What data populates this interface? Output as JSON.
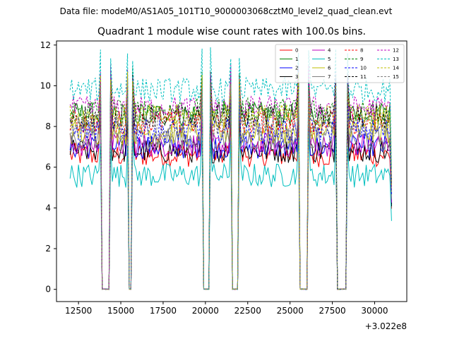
{
  "chart_data": {
    "type": "line",
    "suptitle": "Data file: modeM0/AS1A05_101T10_9000003068cztM0_level2_quad_clean.evt",
    "title": "Quadrant 1 module wise count rates with 100.0s bins.",
    "xlabel": "",
    "ylabel": "",
    "x_offset_label": "+3.022e8",
    "xlim": [
      11200,
      31900
    ],
    "ylim": [
      -0.6,
      12.2
    ],
    "x_ticks": [
      12500,
      15000,
      17500,
      20000,
      22500,
      25000,
      27500,
      30000
    ],
    "y_ticks": [
      0,
      2,
      4,
      6,
      8,
      10,
      12
    ],
    "grid": false,
    "legend_position": "top-right",
    "time_start": 12000,
    "time_step": 100,
    "time_end": 31000,
    "gaps": [
      [
        13850,
        14350
      ],
      [
        15450,
        15650
      ],
      [
        19850,
        20250
      ],
      [
        21550,
        21950
      ],
      [
        25550,
        26050
      ],
      [
        27750,
        28350
      ]
    ],
    "noise_level": 0.6,
    "series": [
      {
        "name": "0",
        "level": 6.6,
        "color": "#ff0000",
        "dashed": false
      },
      {
        "name": "1",
        "level": 8.6,
        "color": "#008000",
        "dashed": false
      },
      {
        "name": "2",
        "level": 7.0,
        "color": "#0000ff",
        "dashed": false
      },
      {
        "name": "3",
        "level": 6.8,
        "color": "#000000",
        "dashed": false
      },
      {
        "name": "4",
        "level": 7.1,
        "color": "#bf00bf",
        "dashed": false
      },
      {
        "name": "5",
        "level": 5.6,
        "color": "#00bfbf",
        "dashed": false
      },
      {
        "name": "6",
        "level": 7.7,
        "color": "#bfbf00",
        "dashed": false
      },
      {
        "name": "7",
        "level": 7.4,
        "color": "#808080",
        "dashed": false
      },
      {
        "name": "8",
        "level": 8.2,
        "color": "#ff0000",
        "dashed": true
      },
      {
        "name": "9",
        "level": 8.8,
        "color": "#008000",
        "dashed": true
      },
      {
        "name": "10",
        "level": 7.8,
        "color": "#0000ff",
        "dashed": true
      },
      {
        "name": "11",
        "level": 8.5,
        "color": "#000000",
        "dashed": true
      },
      {
        "name": "12",
        "level": 8.9,
        "color": "#bf00bf",
        "dashed": true
      },
      {
        "name": "13",
        "level": 9.8,
        "color": "#00bfbf",
        "dashed": true
      },
      {
        "name": "14",
        "level": 8.5,
        "color": "#bfbf00",
        "dashed": true
      },
      {
        "name": "15",
        "level": 8.0,
        "color": "#808080",
        "dashed": true
      }
    ]
  }
}
